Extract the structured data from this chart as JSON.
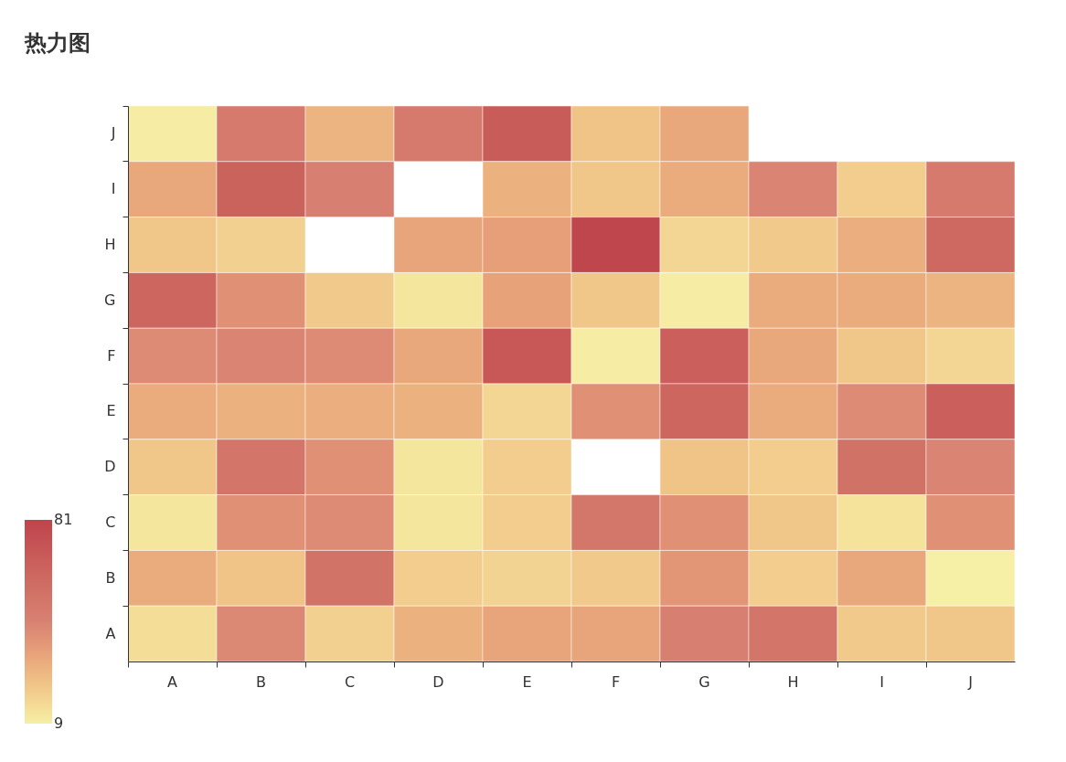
{
  "chart_data": {
    "type": "heatmap",
    "title": "热力图",
    "categories": [
      "A",
      "B",
      "C",
      "D",
      "E",
      "F",
      "G",
      "H",
      "I",
      "J"
    ],
    "y_categories": [
      "J",
      "I",
      "H",
      "G",
      "F",
      "E",
      "D",
      "C",
      "B",
      "A"
    ],
    "cells": [
      [
        10,
        50,
        28,
        50,
        68,
        23,
        32,
        null,
        null,
        null
      ],
      [
        32,
        64,
        46,
        null,
        29,
        22,
        31,
        44,
        20,
        50
      ],
      [
        22,
        19,
        null,
        33,
        35,
        80,
        17,
        21,
        30,
        60
      ],
      [
        62,
        40,
        21,
        12,
        34,
        22,
        10,
        31,
        31,
        28
      ],
      [
        42,
        44,
        42,
        32,
        70,
        10,
        66,
        32,
        22,
        17
      ],
      [
        31,
        29,
        30,
        29,
        17,
        40,
        62,
        31,
        42,
        66
      ],
      [
        22,
        53,
        40,
        12,
        20,
        null,
        23,
        20,
        55,
        44
      ],
      [
        12,
        40,
        42,
        12,
        20,
        52,
        40,
        22,
        13,
        40
      ],
      [
        31,
        23,
        54,
        20,
        18,
        21,
        38,
        20,
        32,
        9
      ],
      [
        15,
        43,
        19,
        29,
        33,
        33,
        46,
        53,
        21,
        22
      ]
    ],
    "clim": [
      9,
      81
    ],
    "cticks": [
      9,
      81
    ],
    "colors": [
      "#f6efa6",
      "#d88273",
      "#bf444c"
    ]
  }
}
